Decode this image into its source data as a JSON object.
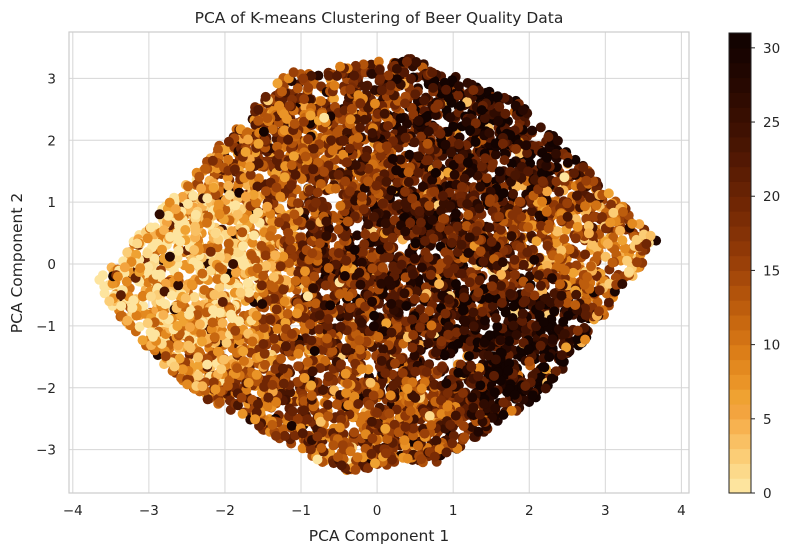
{
  "chart_data": {
    "type": "scatter",
    "title": "PCA of K-means Clustering of Beer Quality Data",
    "xlabel": "PCA Component 1",
    "ylabel": "PCA Component 2",
    "xlim": [
      -4.05,
      4.1
    ],
    "ylim": [
      -3.7,
      3.75
    ],
    "xticks": [
      -4,
      -3,
      -2,
      -1,
      0,
      1,
      2,
      3,
      4
    ],
    "yticks": [
      -3,
      -2,
      -1,
      0,
      1,
      2,
      3
    ],
    "xtick_labels": [
      "−4",
      "−3",
      "−2",
      "−1",
      "0",
      "1",
      "2",
      "3",
      "4"
    ],
    "ytick_labels": [
      "−3",
      "−2",
      "−1",
      "0",
      "1",
      "2",
      "3"
    ],
    "grid": true,
    "marker_style": "filled circle",
    "point_count_estimate": 6000,
    "cloud_outline": {
      "description": "roughly diamond-shaped point cloud",
      "vertices_data_units": [
        [
          -3.7,
          -0.3
        ],
        [
          -1.2,
          3.1
        ],
        [
          0.4,
          3.35
        ],
        [
          1.9,
          2.6
        ],
        [
          3.7,
          0.35
        ],
        [
          2.2,
          -2.1
        ],
        [
          0.8,
          -3.2
        ],
        [
          -0.5,
          -3.35
        ],
        [
          -2.4,
          -2.1
        ],
        [
          -3.4,
          -0.9
        ]
      ]
    },
    "color_regions": [
      {
        "label": "left lobe",
        "center": [
          -2.7,
          0.3
        ],
        "cluster_level": 2
      },
      {
        "label": "upper-left ridge",
        "center": [
          -1.5,
          2.0
        ],
        "cluster_level": 14
      },
      {
        "label": "upper-right",
        "center": [
          2.0,
          2.2
        ],
        "cluster_level": 27
      },
      {
        "label": "right tip",
        "center": [
          3.0,
          0.2
        ],
        "cluster_level": 9
      },
      {
        "label": "center",
        "center": [
          0.5,
          0.2
        ],
        "cluster_level": 22
      },
      {
        "label": "lower band",
        "center": [
          0.0,
          -2.6
        ],
        "cluster_level": 15
      },
      {
        "label": "lower-right",
        "center": [
          2.0,
          -1.3
        ],
        "cluster_level": 29
      }
    ],
    "colorbar": {
      "colormap": "YlOrBr (discrete)",
      "range": [
        0,
        31
      ],
      "ticks": [
        0,
        5,
        10,
        15,
        20,
        25,
        30
      ],
      "tick_labels": [
        "0",
        "5",
        "10",
        "15",
        "20",
        "25",
        "30"
      ],
      "colors": [
        "#fde49e",
        "#fcd98a",
        "#fbcd76",
        "#f9c063",
        "#f7b250",
        "#f3a43f",
        "#efa232",
        "#ea9427",
        "#e3891f",
        "#dc7e18",
        "#d27214",
        "#c86810",
        "#bd5d0d",
        "#b2530b",
        "#a6490a",
        "#9a4008",
        "#8f3806",
        "#843206",
        "#7a2c05",
        "#702604",
        "#662204",
        "#5c1d03",
        "#521803",
        "#481502",
        "#3f1102",
        "#370e01",
        "#2f0b01",
        "#270801",
        "#200601",
        "#190401",
        "#130301"
      ]
    }
  }
}
